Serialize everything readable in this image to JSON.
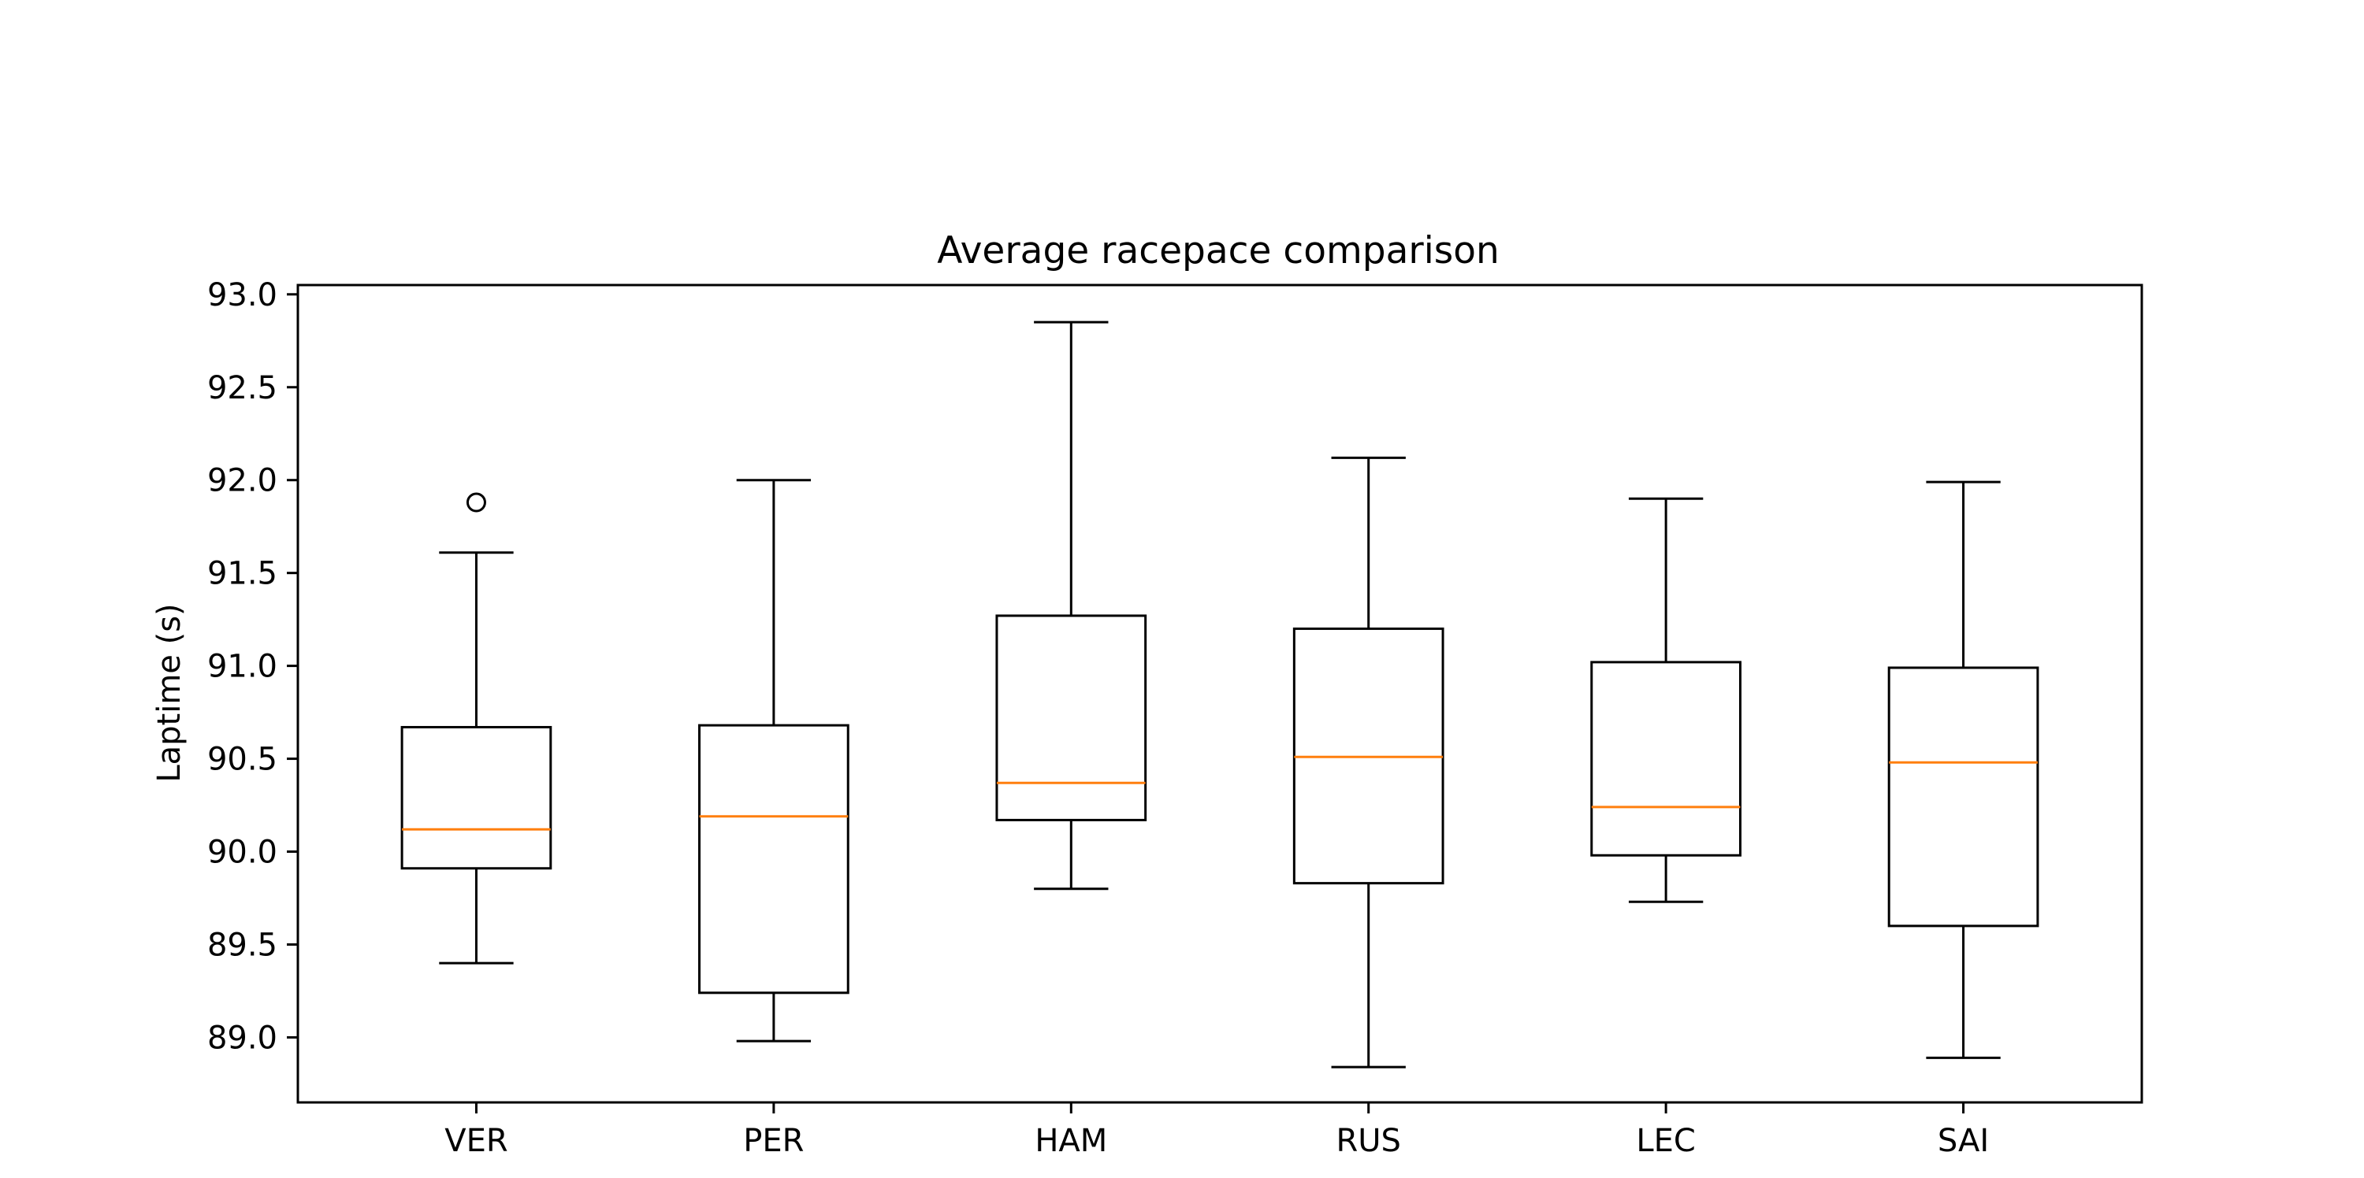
{
  "chart_data": {
    "type": "boxplot",
    "title": "Average racepace comparison",
    "xlabel": "",
    "ylabel": "Laptime (s)",
    "ylim": [
      88.65,
      93.05
    ],
    "yticks": [
      89.0,
      89.5,
      90.0,
      90.5,
      91.0,
      91.5,
      92.0,
      92.5,
      93.0
    ],
    "ytick_labels": [
      "89.0",
      "89.5",
      "90.0",
      "90.5",
      "91.0",
      "91.5",
      "92.0",
      "92.5",
      "93.0"
    ],
    "grid": false,
    "categories": [
      "VER",
      "PER",
      "HAM",
      "RUS",
      "LEC",
      "SAI"
    ],
    "boxes": [
      {
        "label": "VER",
        "whisker_low": 89.4,
        "q1": 89.91,
        "median": 90.12,
        "q3": 90.67,
        "whisker_high": 91.61,
        "outliers": [
          91.88
        ]
      },
      {
        "label": "PER",
        "whisker_low": 88.98,
        "q1": 89.24,
        "median": 90.19,
        "q3": 90.68,
        "whisker_high": 92.0,
        "outliers": []
      },
      {
        "label": "HAM",
        "whisker_low": 89.8,
        "q1": 90.17,
        "median": 90.37,
        "q3": 91.27,
        "whisker_high": 92.85,
        "outliers": []
      },
      {
        "label": "RUS",
        "whisker_low": 88.84,
        "q1": 89.83,
        "median": 90.51,
        "q3": 91.2,
        "whisker_high": 92.12,
        "outliers": []
      },
      {
        "label": "LEC",
        "whisker_low": 89.73,
        "q1": 89.98,
        "median": 90.24,
        "q3": 91.02,
        "whisker_high": 91.9,
        "outliers": []
      },
      {
        "label": "SAI",
        "whisker_low": 88.89,
        "q1": 89.6,
        "median": 90.48,
        "q3": 90.99,
        "whisker_high": 91.99,
        "outliers": []
      }
    ],
    "colors": {
      "box": "#000000",
      "median": "#ff7f0e",
      "outlier": "#000000"
    }
  }
}
